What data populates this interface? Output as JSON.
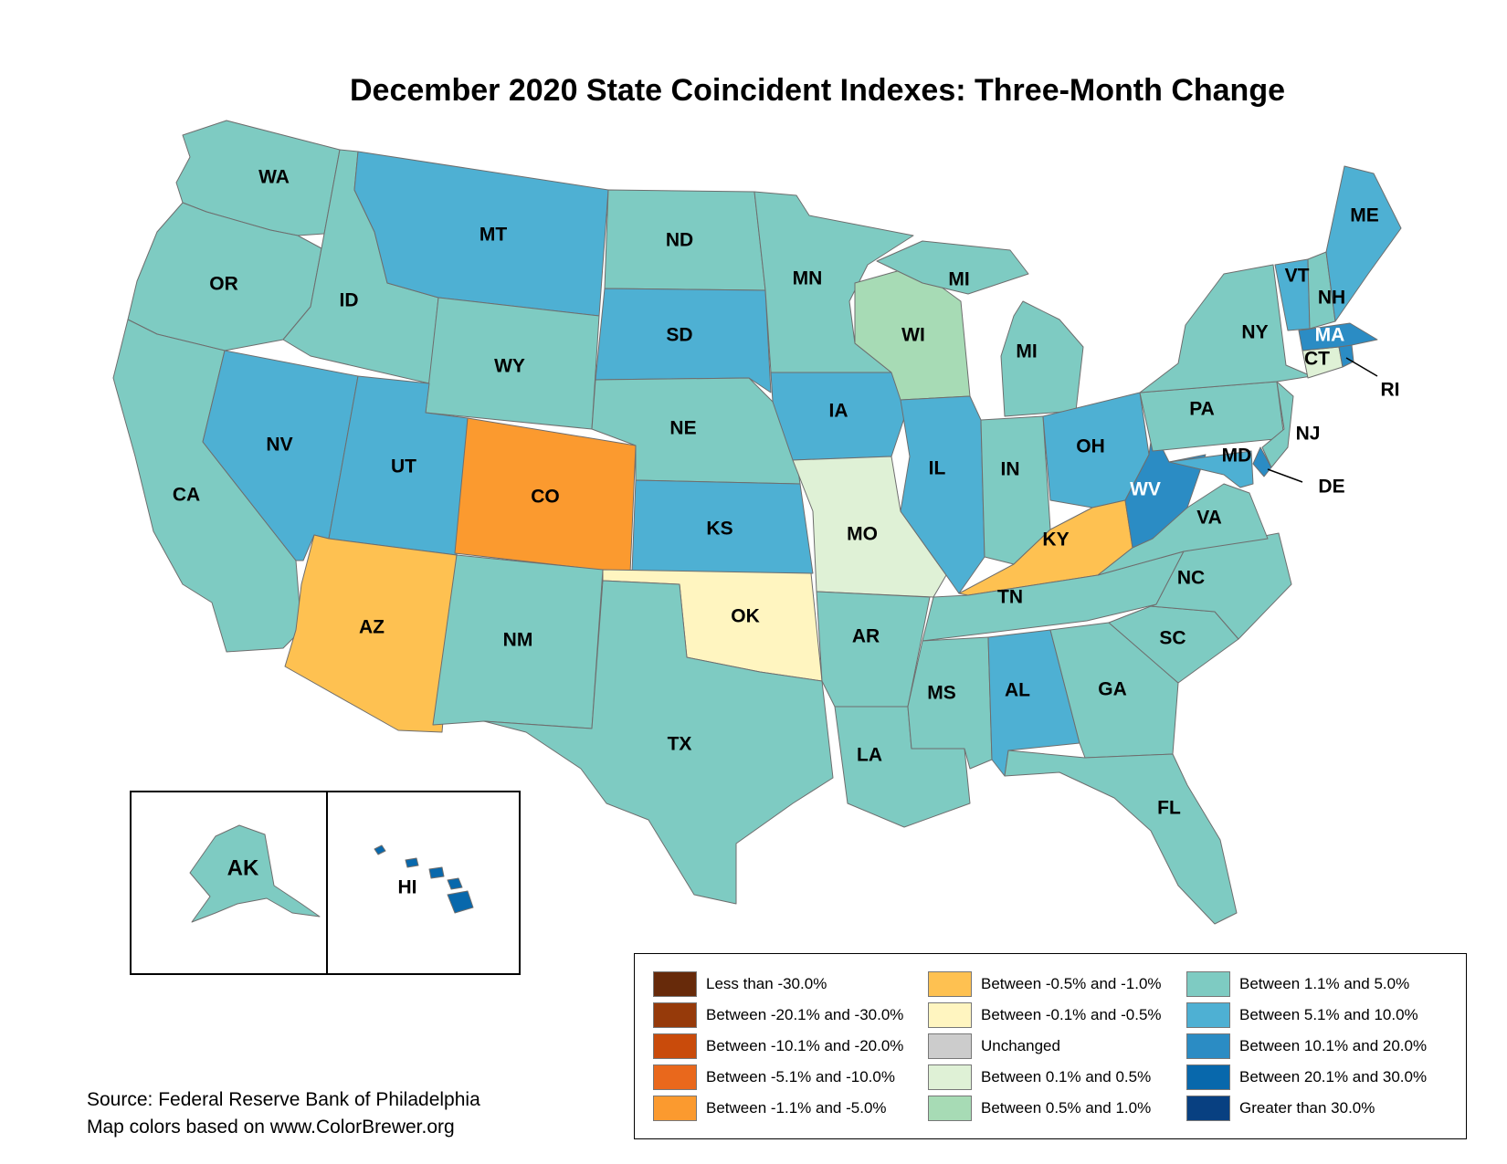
{
  "title": "December 2020 State Coincident Indexes: Three-Month Change",
  "source_lines": [
    "Source: Federal Reserve Bank of Philadelphia",
    "Map colors based on www.ColorBrewer.org"
  ],
  "colors": {
    "lt_neg30": "#672a0a",
    "neg20_30": "#963a0a",
    "neg10_20": "#c94b0b",
    "neg5_10": "#e9681c",
    "neg1_5": "#fb9a2f",
    "neg05_1": "#fec151",
    "neg01_05": "#fff5c0",
    "unchanged": "#cccccc",
    "pos01_05": "#dff1d6",
    "pos05_1": "#a7dbb5",
    "pos1_5": "#7ecbc2",
    "pos5_10": "#4eb0d3",
    "pos10_20": "#2b8cc4",
    "pos20_30": "#0868ac",
    "gt30": "#084081",
    "border": "#6e6e6e"
  },
  "legend": [
    [
      {
        "key": "lt_neg30",
        "label": "Less than -30.0%"
      },
      {
        "key": "neg20_30",
        "label": "Between -20.1% and -30.0%"
      },
      {
        "key": "neg10_20",
        "label": "Between -10.1% and -20.0%"
      },
      {
        "key": "neg5_10",
        "label": "Between -5.1% and -10.0%"
      },
      {
        "key": "neg1_5",
        "label": "Between -1.1% and -5.0%"
      }
    ],
    [
      {
        "key": "neg05_1",
        "label": "Between -0.5% and -1.0%"
      },
      {
        "key": "neg01_05",
        "label": "Between -0.1% and -0.5%"
      },
      {
        "key": "unchanged",
        "label": "Unchanged"
      },
      {
        "key": "pos01_05",
        "label": "Between 0.1% and 0.5%"
      },
      {
        "key": "pos05_1",
        "label": "Between 0.5% and 1.0%"
      }
    ],
    [
      {
        "key": "pos1_5",
        "label": "Between 1.1% and 5.0%"
      },
      {
        "key": "pos5_10",
        "label": "Between 5.1% and 10.0%"
      },
      {
        "key": "pos10_20",
        "label": "Between 10.1% and 20.0%"
      },
      {
        "key": "pos20_30",
        "label": "Between 20.1% and 30.0%"
      },
      {
        "key": "gt30",
        "label": "Greater than 30.0%"
      }
    ]
  ],
  "states": [
    {
      "abbr": "WA",
      "class": "pos1_5"
    },
    {
      "abbr": "OR",
      "class": "pos1_5"
    },
    {
      "abbr": "CA",
      "class": "pos1_5"
    },
    {
      "abbr": "ID",
      "class": "pos1_5"
    },
    {
      "abbr": "NV",
      "class": "pos5_10"
    },
    {
      "abbr": "MT",
      "class": "pos5_10"
    },
    {
      "abbr": "WY",
      "class": "pos1_5"
    },
    {
      "abbr": "UT",
      "class": "pos5_10"
    },
    {
      "abbr": "AZ",
      "class": "neg05_1"
    },
    {
      "abbr": "CO",
      "class": "neg1_5"
    },
    {
      "abbr": "NM",
      "class": "pos1_5"
    },
    {
      "abbr": "ND",
      "class": "pos1_5"
    },
    {
      "abbr": "SD",
      "class": "pos5_10"
    },
    {
      "abbr": "NE",
      "class": "pos1_5"
    },
    {
      "abbr": "KS",
      "class": "pos5_10"
    },
    {
      "abbr": "OK",
      "class": "neg01_05"
    },
    {
      "abbr": "TX",
      "class": "pos1_5"
    },
    {
      "abbr": "MN",
      "class": "pos1_5"
    },
    {
      "abbr": "IA",
      "class": "pos5_10"
    },
    {
      "abbr": "MO",
      "class": "pos01_05"
    },
    {
      "abbr": "AR",
      "class": "pos1_5"
    },
    {
      "abbr": "LA",
      "class": "pos1_5"
    },
    {
      "abbr": "WI",
      "class": "pos05_1"
    },
    {
      "abbr": "IL",
      "class": "pos5_10"
    },
    {
      "abbr": "MI",
      "class": "pos1_5"
    },
    {
      "abbr": "IN",
      "class": "pos1_5"
    },
    {
      "abbr": "OH",
      "class": "pos5_10"
    },
    {
      "abbr": "KY",
      "class": "neg05_1"
    },
    {
      "abbr": "TN",
      "class": "pos1_5"
    },
    {
      "abbr": "MS",
      "class": "pos1_5"
    },
    {
      "abbr": "AL",
      "class": "pos5_10"
    },
    {
      "abbr": "GA",
      "class": "pos1_5"
    },
    {
      "abbr": "FL",
      "class": "pos1_5"
    },
    {
      "abbr": "SC",
      "class": "pos1_5"
    },
    {
      "abbr": "NC",
      "class": "pos1_5"
    },
    {
      "abbr": "VA",
      "class": "pos1_5"
    },
    {
      "abbr": "WV",
      "class": "pos10_20"
    },
    {
      "abbr": "PA",
      "class": "pos1_5"
    },
    {
      "abbr": "NY",
      "class": "pos1_5"
    },
    {
      "abbr": "NJ",
      "class": "pos1_5"
    },
    {
      "abbr": "DE",
      "class": "pos10_20"
    },
    {
      "abbr": "MD",
      "class": "pos5_10"
    },
    {
      "abbr": "CT",
      "class": "pos01_05"
    },
    {
      "abbr": "RI",
      "class": "pos10_20"
    },
    {
      "abbr": "MA",
      "class": "pos10_20"
    },
    {
      "abbr": "VT",
      "class": "pos5_10"
    },
    {
      "abbr": "NH",
      "class": "pos1_5"
    },
    {
      "abbr": "ME",
      "class": "pos5_10"
    },
    {
      "abbr": "AK",
      "class": "pos1_5"
    },
    {
      "abbr": "HI",
      "class": "pos20_30"
    }
  ],
  "labels": {
    "WA": "WA",
    "OR": "OR",
    "CA": "CA",
    "ID": "ID",
    "NV": "NV",
    "MT": "MT",
    "WY": "WY",
    "UT": "UT",
    "AZ": "AZ",
    "CO": "CO",
    "NM": "NM",
    "ND": "ND",
    "SD": "SD",
    "NE": "NE",
    "KS": "KS",
    "OK": "OK",
    "TX": "TX",
    "MN": "MN",
    "IA": "IA",
    "MO": "MO",
    "AR": "AR",
    "LA": "LA",
    "WI": "WI",
    "IL": "IL",
    "MI_UP": "MI",
    "MI_LP": "MI",
    "IN": "IN",
    "OH": "OH",
    "KY": "KY",
    "TN": "TN",
    "MS": "MS",
    "AL": "AL",
    "GA": "GA",
    "FL": "FL",
    "SC": "SC",
    "NC": "NC",
    "VA": "VA",
    "WV": "WV",
    "PA": "PA",
    "NY": "NY",
    "NJ": "NJ",
    "DE": "DE",
    "MD": "MD",
    "CT": "CT",
    "RI": "RI",
    "MA": "MA",
    "VT": "VT",
    "NH": "NH",
    "ME": "ME",
    "AK": "AK",
    "HI": "HI"
  }
}
